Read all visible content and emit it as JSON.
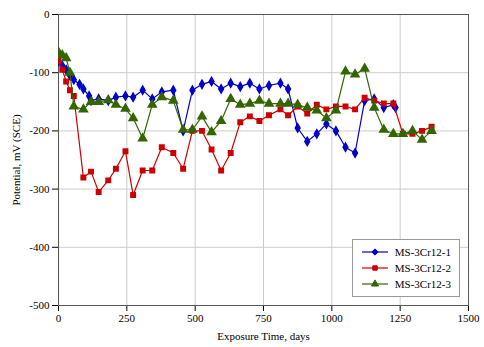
{
  "chart_data": {
    "type": "line",
    "xlabel": "Exposure Time, days",
    "ylabel": "Potential, mV (SCE)",
    "xlim": [
      0,
      1500
    ],
    "ylim": [
      -500,
      0
    ],
    "xticks": [
      0,
      250,
      500,
      750,
      1000,
      1250,
      1500
    ],
    "yticks": [
      0,
      -100,
      -200,
      -300,
      -400,
      -500
    ],
    "grid": true,
    "legend": "lower right",
    "series": [
      {
        "name": "MS-3Cr12-1",
        "color": "#0000cc",
        "marker": "diamond",
        "x": [
          0,
          14,
          28,
          42,
          56,
          77,
          91,
          112,
          119,
          147,
          182,
          210,
          245,
          273,
          308,
          343,
          378,
          420,
          456,
          490,
          525,
          560,
          595,
          630,
          665,
          700,
          735,
          770,
          812,
          840,
          875,
          910,
          945,
          980,
          1015,
          1050,
          1085,
          1120,
          1155,
          1190,
          1225,
          1233
        ],
        "values": [
          -80,
          -88,
          -95,
          -105,
          -112,
          -120,
          -128,
          -140,
          -148,
          -145,
          -148,
          -142,
          -140,
          -142,
          -130,
          -145,
          -133,
          -130,
          -200,
          -130,
          -120,
          -115,
          -128,
          -118,
          -124,
          -118,
          -128,
          -122,
          -118,
          -128,
          -195,
          -218,
          -205,
          -188,
          -200,
          -228,
          -238,
          -148,
          -145,
          -160,
          -155,
          -160
        ]
      },
      {
        "name": "MS-3Cr12-2",
        "color": "#cc0000",
        "marker": "square",
        "x": [
          0,
          14,
          28,
          42,
          56,
          91,
          119,
          147,
          182,
          210,
          245,
          273,
          308,
          343,
          378,
          420,
          456,
          490,
          525,
          560,
          595,
          630,
          665,
          700,
          735,
          770,
          812,
          840,
          875,
          910,
          945,
          980,
          1015,
          1050,
          1085,
          1120,
          1155,
          1190,
          1225,
          1260,
          1295,
          1330,
          1365
        ],
        "values": [
          -80,
          -95,
          -115,
          -130,
          -140,
          -280,
          -270,
          -305,
          -285,
          -265,
          -235,
          -310,
          -268,
          -268,
          -228,
          -238,
          -265,
          -200,
          -200,
          -232,
          -268,
          -238,
          -185,
          -175,
          -183,
          -173,
          -163,
          -173,
          -158,
          -170,
          -155,
          -163,
          -158,
          -158,
          -163,
          -143,
          -148,
          -153,
          -153,
          -205,
          -205,
          -200,
          -193
        ]
      },
      {
        "name": "MS-3Cr12-3",
        "color": "#336600",
        "marker": "triangle",
        "x": [
          0,
          14,
          28,
          42,
          56,
          91,
          119,
          147,
          182,
          210,
          245,
          273,
          308,
          343,
          378,
          420,
          456,
          490,
          525,
          560,
          595,
          630,
          665,
          700,
          735,
          770,
          812,
          840,
          875,
          910,
          945,
          980,
          1015,
          1050,
          1085,
          1120,
          1155,
          1190,
          1225,
          1260,
          1295,
          1330,
          1365
        ],
        "values": [
          -65,
          -70,
          -75,
          -100,
          -158,
          -163,
          -150,
          -150,
          -147,
          -155,
          -162,
          -178,
          -213,
          -155,
          -142,
          -148,
          -198,
          -198,
          -175,
          -202,
          -183,
          -145,
          -155,
          -153,
          -148,
          -153,
          -153,
          -153,
          -155,
          -160,
          -165,
          -178,
          -165,
          -98,
          -103,
          -93,
          -160,
          -198,
          -205,
          -205,
          -200,
          -215,
          -200
        ]
      }
    ]
  }
}
